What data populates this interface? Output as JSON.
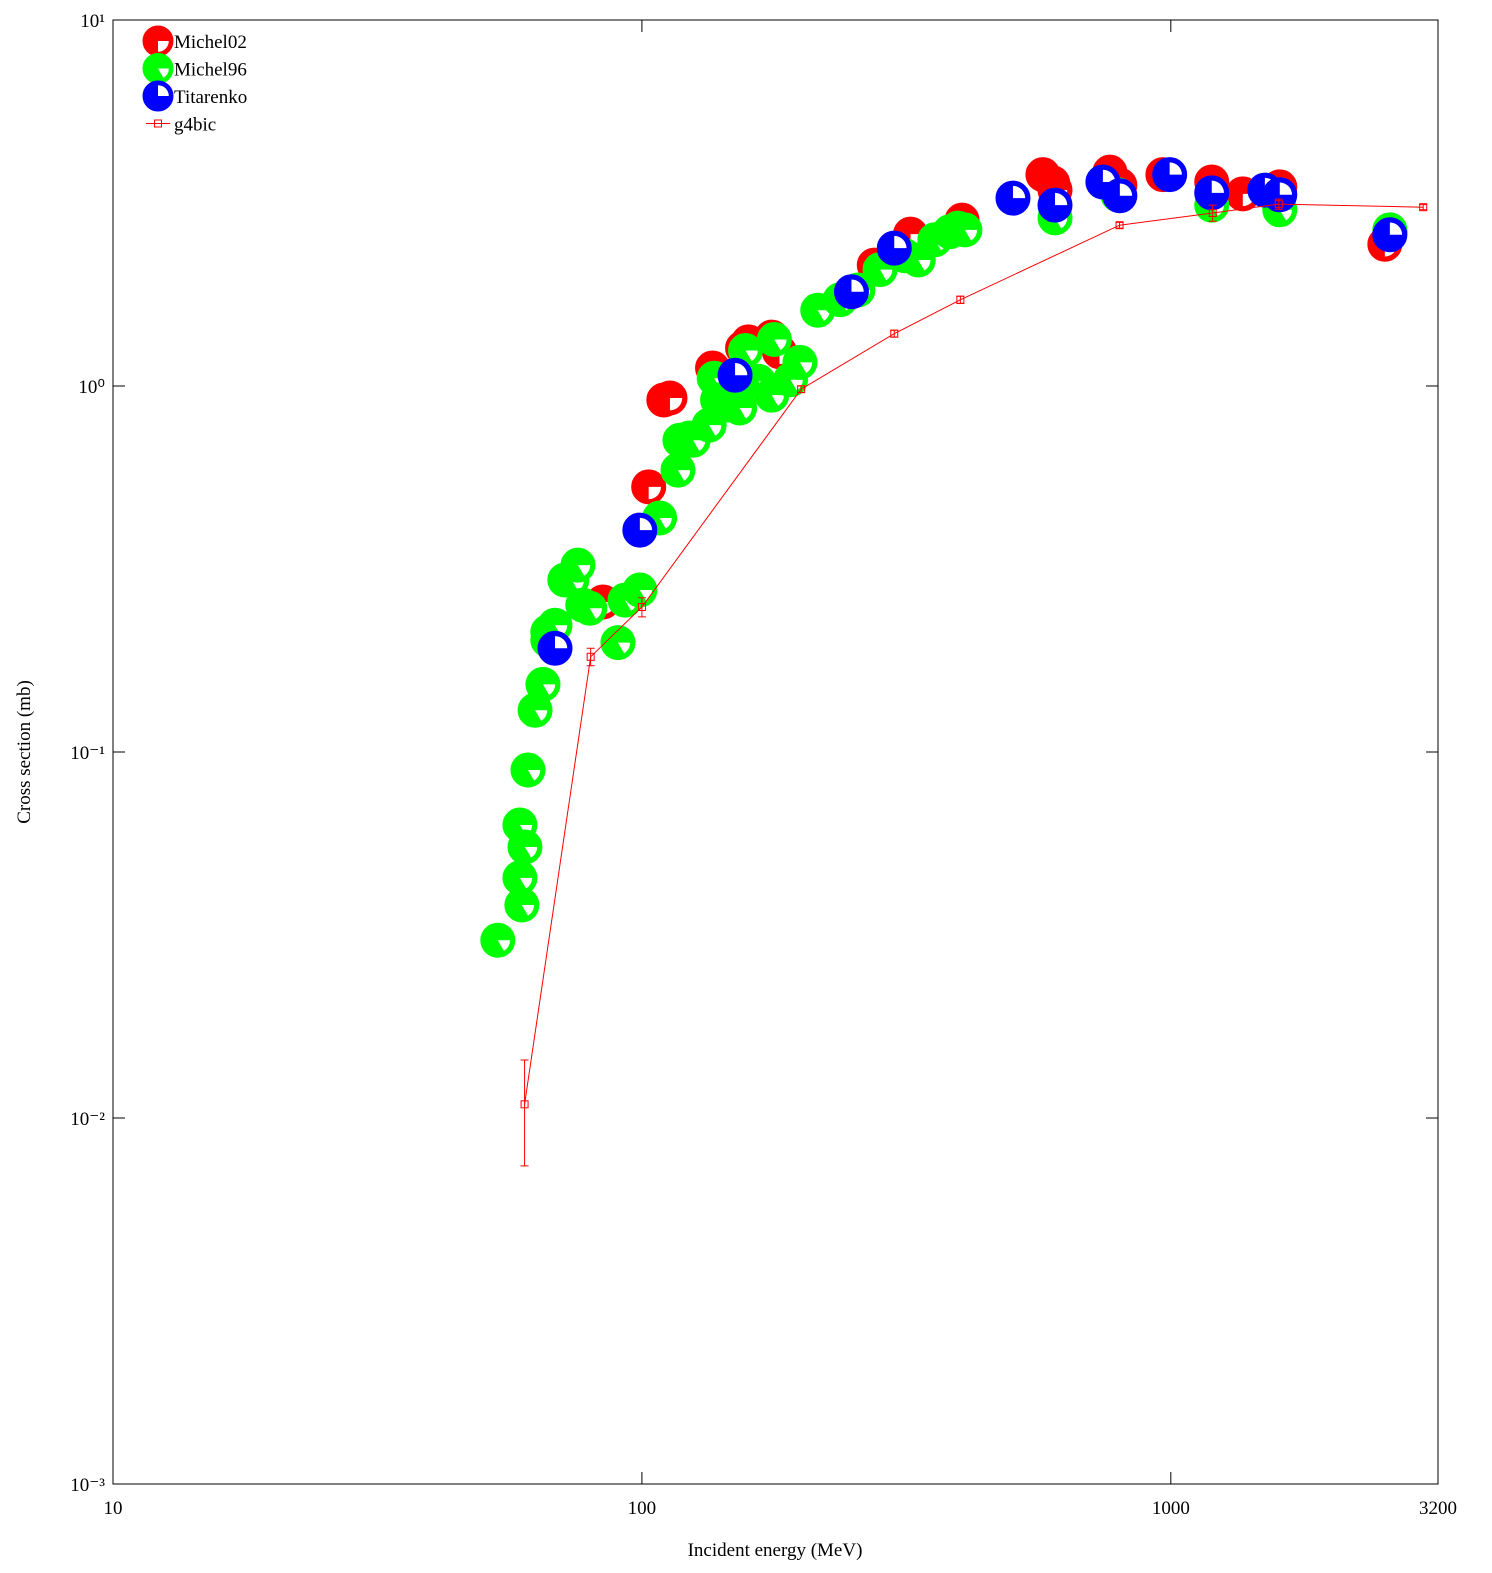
{
  "chart_data": {
    "type": "scatter",
    "x_label": "Incident energy (MeV)",
    "y_label": "Cross section (mb)",
    "xscale": "log",
    "yscale": "log",
    "xlim": [
      10,
      3200
    ],
    "ylim": [
      0.001,
      10
    ],
    "xticks": [
      10,
      100,
      1000,
      3200
    ],
    "yticks": [
      {
        "value": 0.001,
        "label": "10⁻³"
      },
      {
        "value": 0.01,
        "label": "10⁻²"
      },
      {
        "value": 0.1,
        "label": "10⁻¹"
      },
      {
        "value": 1,
        "label": "10⁰"
      },
      {
        "value": 10,
        "label": "10¹"
      }
    ],
    "legend": "upper left",
    "series": [
      {
        "name": "Michel02",
        "color": "#ff0000",
        "style": "points",
        "x": [
          103,
          84.4,
          110,
          113,
          136,
          155,
          159,
          176,
          182,
          275,
          322,
          403,
          573,
          598,
          604,
          767,
          801,
          966,
          1195,
          1368,
          1607,
          2539,
          2595
        ],
        "values": [
          0.53,
          0.257,
          0.916,
          0.927,
          1.12,
          1.27,
          1.32,
          1.36,
          1.24,
          2.14,
          2.6,
          2.84,
          3.78,
          3.59,
          3.43,
          3.84,
          3.54,
          3.78,
          3.61,
          3.35,
          3.5,
          2.44,
          2.64
        ]
      },
      {
        "name": "Michel96",
        "color": "#00ff00",
        "style": "points",
        "x": [
          53.4,
          58.8,
          58.8,
          60.1,
          59.3,
          60.9,
          62.8,
          65,
          66.4,
          66.4,
          68.5,
          71.5,
          73.7,
          75.7,
          77.3,
          79.7,
          92.9,
          90.1,
          99.1,
          108,
          117,
          118,
          123,
          125,
          134,
          137,
          139,
          145,
          153,
          157,
          166,
          176,
          178,
          191,
          199,
          215,
          237,
          256,
          282,
          314,
          333,
          358,
          382,
          396,
          408,
          604,
          794,
          1195,
          1607,
          2595
        ],
        "values": [
          0.0306,
          0.0453,
          0.0632,
          0.055,
          0.0382,
          0.0893,
          0.13,
          0.153,
          0.202,
          0.213,
          0.222,
          0.295,
          0.295,
          0.324,
          0.252,
          0.247,
          0.26,
          0.199,
          0.277,
          0.436,
          0.589,
          0.711,
          0.721,
          0.711,
          0.782,
          1.05,
          0.916,
          0.887,
          0.871,
          1.25,
          1.03,
          0.944,
          1.34,
          1.04,
          1.16,
          1.61,
          1.72,
          1.83,
          2.08,
          2.27,
          2.21,
          2.51,
          2.64,
          2.7,
          2.67,
          2.88,
          3.33,
          3.12,
          3.03,
          2.67
        ]
      },
      {
        "name": "Titarenko",
        "color": "#0000ff",
        "style": "points",
        "x": [
          68.5,
          99.1,
          150,
          249,
          300,
          503,
          604,
          744,
          801,
          995,
          1195,
          1506,
          1607,
          2595
        ],
        "values": [
          0.192,
          0.404,
          1.07,
          1.81,
          2.38,
          3.26,
          3.12,
          3.61,
          3.31,
          3.78,
          3.37,
          3.43,
          3.33,
          2.59
        ]
      },
      {
        "name": "g4bic",
        "color": "#ff0000",
        "style": "linepoints",
        "x": [
          60,
          80,
          100,
          200,
          300,
          400,
          800,
          1200,
          1600,
          3000
        ],
        "values": [
          0.0109,
          0.182,
          0.249,
          0.98,
          1.39,
          1.72,
          2.75,
          2.97,
          3.14,
          3.08
        ],
        "errors": [
          0.0035,
          0.01,
          0.015,
          0.02,
          0.03,
          0.04,
          0.05,
          0.15,
          0.1,
          0.05
        ]
      }
    ]
  }
}
